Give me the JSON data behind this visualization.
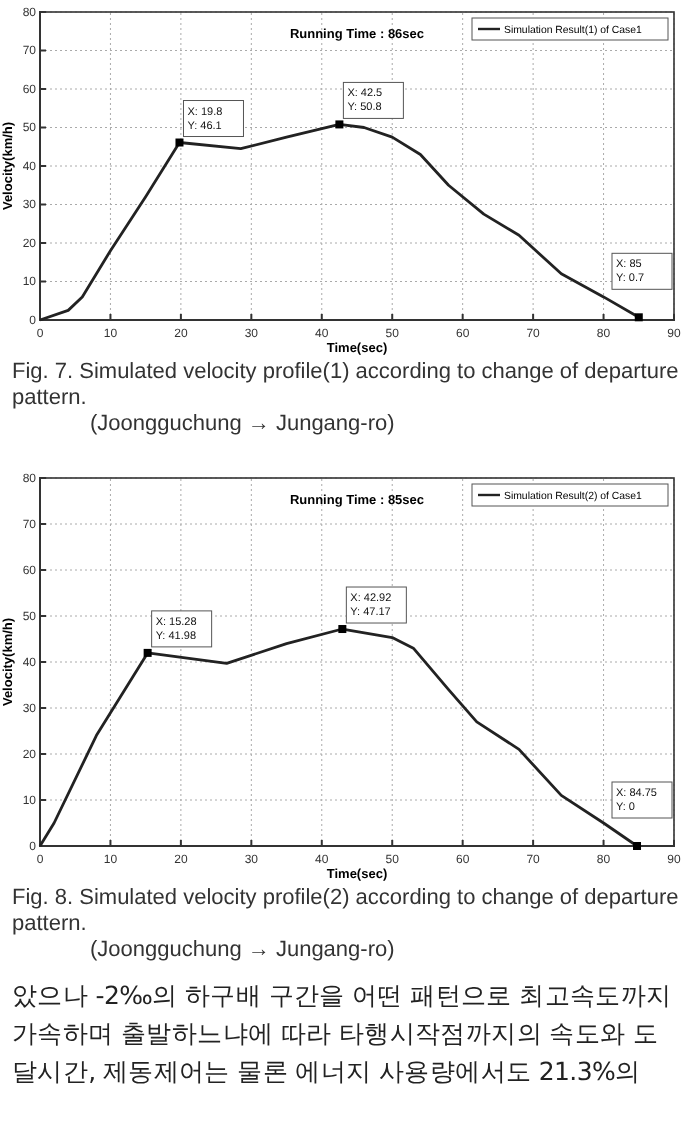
{
  "chart_data": [
    {
      "type": "line",
      "title": "Running Time : 86sec",
      "xlabel": "Time(sec)",
      "ylabel": "Velocity(km/h)",
      "xlim": [
        0,
        90
      ],
      "ylim": [
        0,
        80
      ],
      "xticks": [
        0,
        10,
        20,
        30,
        40,
        50,
        60,
        70,
        80,
        90
      ],
      "yticks": [
        0,
        10,
        20,
        30,
        40,
        50,
        60,
        70,
        80
      ],
      "grid": true,
      "legend": "top right",
      "series": [
        {
          "name": "Simulation Result(1) of Case1",
          "color": "#222222",
          "x": [
            0,
            4,
            6,
            10,
            15,
            19.8,
            28.5,
            35,
            42.5,
            46,
            50,
            54,
            58,
            63,
            68,
            74,
            80,
            85
          ],
          "values": [
            0,
            2.5,
            6,
            18,
            32,
            46.1,
            44.5,
            47.5,
            50.8,
            50,
            47.5,
            43,
            35,
            27.5,
            22,
            12,
            6,
            0.7
          ]
        }
      ],
      "annotations": [
        {
          "text": "X: 19.8\nY: 46.1",
          "x": 19.8,
          "y": 46.1
        },
        {
          "text": "X: 42.5\nY: 50.8",
          "x": 42.5,
          "y": 50.8
        },
        {
          "text": "X: 85\nY: 0.7",
          "x": 85,
          "y": 0.7
        },
        "Fig. 7. Simulated velocity profile(1) according to change of departure pattern.\n(Joongguchung → Jungang-ro)"
      ]
    },
    {
      "type": "line",
      "title": "Running Time : 85sec",
      "xlabel": "Time(sec)",
      "ylabel": "Velocity(km/h)",
      "xlim": [
        0,
        90
      ],
      "ylim": [
        0,
        80
      ],
      "xticks": [
        0,
        10,
        20,
        30,
        40,
        50,
        60,
        70,
        80,
        90
      ],
      "yticks": [
        0,
        10,
        20,
        30,
        40,
        50,
        60,
        70,
        80
      ],
      "grid": true,
      "legend": "top right",
      "series": [
        {
          "name": "Simulation Result(2) of Case1",
          "color": "#222222",
          "x": [
            0,
            2,
            8,
            15.28,
            26.5,
            35,
            42.92,
            50,
            53,
            58,
            62,
            68,
            74,
            80,
            84.75
          ],
          "values": [
            0,
            5,
            24,
            41.98,
            39.7,
            44,
            47.17,
            45.3,
            43,
            34,
            27,
            21,
            11,
            5,
            0
          ]
        }
      ],
      "annotations": [
        {
          "text": "X: 15.28\nY: 41.98",
          "x": 15.28,
          "y": 41.98
        },
        {
          "text": "X: 42.92\nY: 47.17",
          "x": 42.92,
          "y": 47.17
        },
        {
          "text": "X: 84.75\nY: 0",
          "x": 84.75,
          "y": 0
        },
        "Fig. 8. Simulated velocity profile(2) according to change of departure pattern.\n(Joongguchung → Jungang-ro)",
        "았으나 -2‰의 하구배 구간을 어떤 패턴으로 최고속도까지 가속하며 출발하느냐에 따라 타행시작점까지의 속도와 도달시간, 제동제어는 물론 에너지 사용량에서도 21.3%의"
      ]
    }
  ]
}
